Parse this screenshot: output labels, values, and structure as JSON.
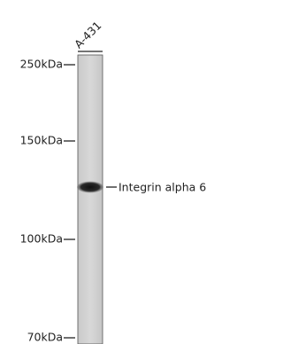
{
  "lane_label": "A-431",
  "markers": [
    "250kDa",
    "150kDa",
    "100kDa",
    "70kDa"
  ],
  "band_label": "Integrin alpha 6"
}
